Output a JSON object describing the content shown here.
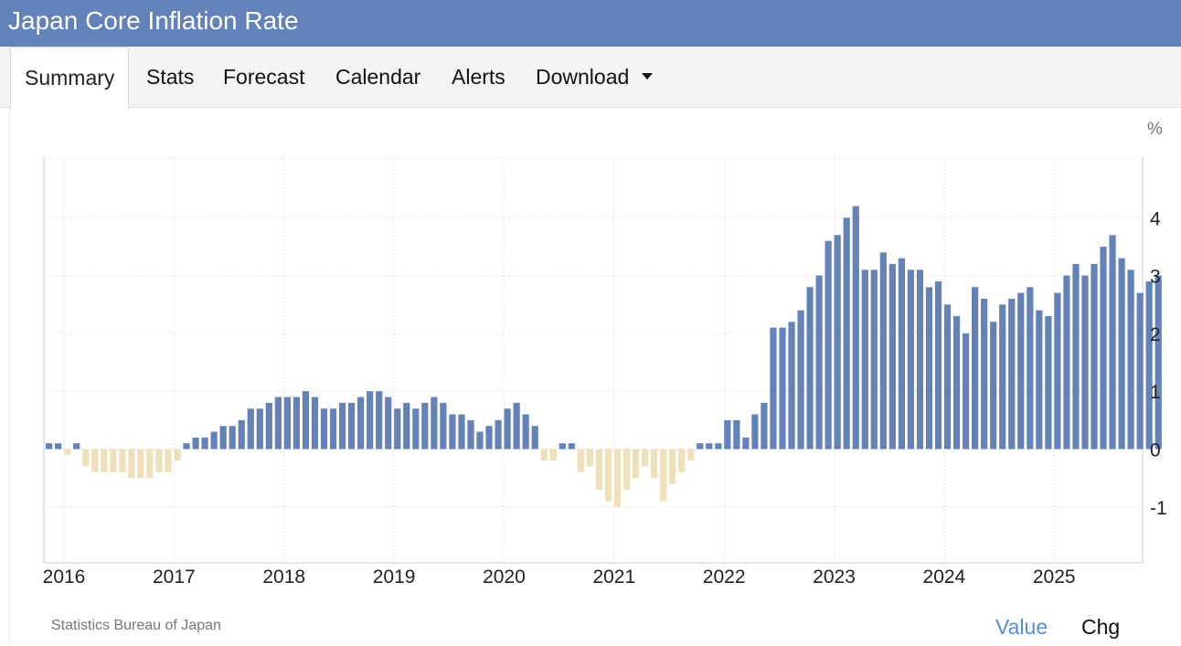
{
  "page": {
    "title": "Japan Core Inflation Rate"
  },
  "tabs": [
    {
      "label": "Summary",
      "active": true
    },
    {
      "label": "Stats"
    },
    {
      "label": "Forecast"
    },
    {
      "label": "Calendar"
    },
    {
      "label": "Alerts"
    },
    {
      "label": "Download",
      "has_dropdown": true
    }
  ],
  "footer": {
    "source": "Statistics Bureau of Japan",
    "toggle_value": "Value",
    "toggle_chg": "Chg"
  },
  "colors": {
    "header": "#6382b9",
    "positive": "#6382b9",
    "negative": "#ede0bb",
    "active_toggle": "#4f8fe0"
  },
  "chart_data": {
    "type": "bar",
    "title": "Japan Core Inflation Rate",
    "unit": "%",
    "xlabel": "",
    "ylabel": "%",
    "ylim": [
      -2,
      5
    ],
    "yticks": [
      "4",
      "3",
      "2",
      "1",
      "0",
      "-1"
    ],
    "ytick_values": [
      4,
      3,
      2,
      1,
      0,
      -1
    ],
    "xtick_labels": [
      "2016",
      "2017",
      "2018",
      "2019",
      "2020",
      "2021",
      "2022",
      "2023",
      "2024",
      "2025"
    ],
    "start": "2016-01",
    "frequency": "monthly",
    "values": [
      0.1,
      0.1,
      -0.1,
      0.1,
      -0.3,
      -0.4,
      -0.4,
      -0.4,
      -0.4,
      -0.5,
      -0.5,
      -0.5,
      -0.4,
      -0.4,
      -0.2,
      0.1,
      0.2,
      0.2,
      0.3,
      0.4,
      0.4,
      0.5,
      0.7,
      0.7,
      0.8,
      0.9,
      0.9,
      0.9,
      1.0,
      0.9,
      0.7,
      0.7,
      0.8,
      0.8,
      0.9,
      1.0,
      1.0,
      0.9,
      0.7,
      0.8,
      0.7,
      0.8,
      0.9,
      0.8,
      0.6,
      0.6,
      0.5,
      0.3,
      0.4,
      0.5,
      0.7,
      0.8,
      0.6,
      0.4,
      -0.2,
      -0.2,
      0.1,
      0.1,
      -0.4,
      -0.3,
      -0.7,
      -0.9,
      -1.0,
      -0.7,
      -0.5,
      -0.3,
      -0.5,
      -0.9,
      -0.6,
      -0.4,
      -0.2,
      0.1,
      0.1,
      0.1,
      0.5,
      0.5,
      0.2,
      0.6,
      0.8,
      2.1,
      2.1,
      2.2,
      2.4,
      2.8,
      3.0,
      3.6,
      3.7,
      4.0,
      4.2,
      3.1,
      3.1,
      3.4,
      3.2,
      3.3,
      3.1,
      3.1,
      2.8,
      2.9,
      2.5,
      2.3,
      2.0,
      2.8,
      2.6,
      2.2,
      2.5,
      2.6,
      2.7,
      2.8,
      2.4,
      2.3,
      2.7,
      3.0,
      3.2,
      3.0,
      3.2,
      3.5,
      3.7,
      3.3,
      3.1,
      2.7,
      2.9,
      3.0
    ]
  }
}
